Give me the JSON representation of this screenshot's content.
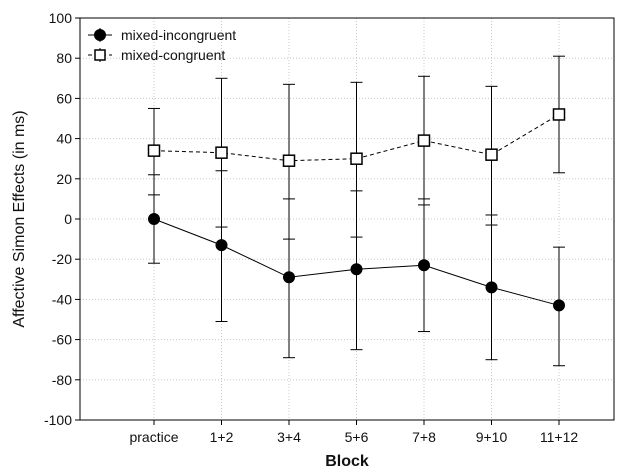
{
  "chart_data": {
    "type": "line",
    "xlabel": "Block",
    "ylabel": "Affective Simon Effects (in ms)",
    "categories": [
      "practice",
      "1+2",
      "3+4",
      "5+6",
      "7+8",
      "9+10",
      "11+12"
    ],
    "ylim": [
      -100,
      100
    ],
    "yticks": [
      100,
      80,
      60,
      40,
      20,
      0,
      -20,
      -40,
      -60,
      -80,
      -100
    ],
    "grid": true,
    "legend_position": "top-left",
    "series": [
      {
        "name": "mixed-incongruent",
        "marker": "filled-circle",
        "line_style": "solid",
        "values": [
          0,
          -13,
          -29,
          -25,
          -23,
          -34,
          -43
        ],
        "error_lower": [
          -22,
          -51,
          -69,
          -65,
          -56,
          -70,
          -73
        ],
        "error_upper": [
          22,
          24,
          10,
          14,
          10,
          2,
          -14
        ]
      },
      {
        "name": "mixed-congruent",
        "marker": "open-square",
        "line_style": "dashed",
        "values": [
          34,
          33,
          29,
          30,
          39,
          32,
          52
        ],
        "error_lower": [
          12,
          -4,
          -10,
          -9,
          7,
          -3,
          23
        ],
        "error_upper": [
          55,
          70,
          67,
          68,
          71,
          66,
          81
        ]
      }
    ]
  }
}
